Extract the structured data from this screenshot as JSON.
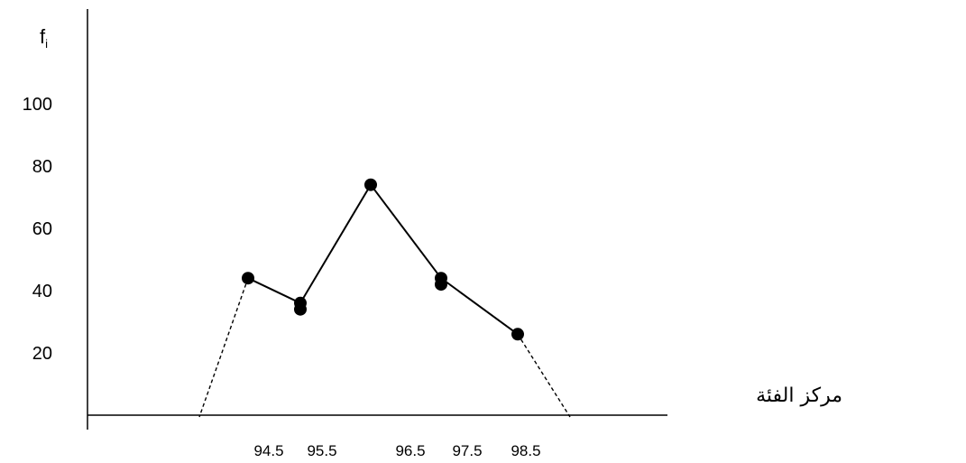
{
  "chart_data": {
    "type": "line",
    "ylabel": "f",
    "ylabel_subscript": "i",
    "xlabel": "مركز الفئة",
    "y_ticks": [
      "20",
      "40",
      "60",
      "80",
      "100"
    ],
    "x_tick_labels": [
      "94.5",
      "95.5",
      "96.5",
      "97.5",
      "98.5"
    ],
    "ylim": [
      0,
      100
    ],
    "xlim": [
      92.5,
      101
    ],
    "grid": false,
    "series": [
      {
        "points": [
          {
            "x": 94.5,
            "y": 44
          },
          {
            "x": 95.5,
            "y": 36
          },
          {
            "x": 95.5,
            "y": 34
          },
          {
            "x": 96.5,
            "y": 74
          },
          {
            "x": 97.5,
            "y": 44
          },
          {
            "x": 97.5,
            "y": 42
          },
          {
            "x": 98.5,
            "y": 26
          }
        ],
        "line_path": [
          {
            "x": 94.5,
            "y": 44
          },
          {
            "x": 95.5,
            "y": 36
          },
          {
            "x": 96.5,
            "y": 74
          },
          {
            "x": 97.5,
            "y": 44
          },
          {
            "x": 98.5,
            "y": 26
          }
        ],
        "dashed_extensions": [
          [
            {
              "x": 94.5,
              "y": 44
            },
            {
              "x": 93.5,
              "y": 0
            }
          ],
          [
            {
              "x": 98.5,
              "y": 26
            },
            {
              "x": 99.5,
              "y": 0
            }
          ]
        ]
      }
    ],
    "colors": {
      "line": "#000000",
      "marker": "#000000",
      "axis": "#000000"
    }
  }
}
